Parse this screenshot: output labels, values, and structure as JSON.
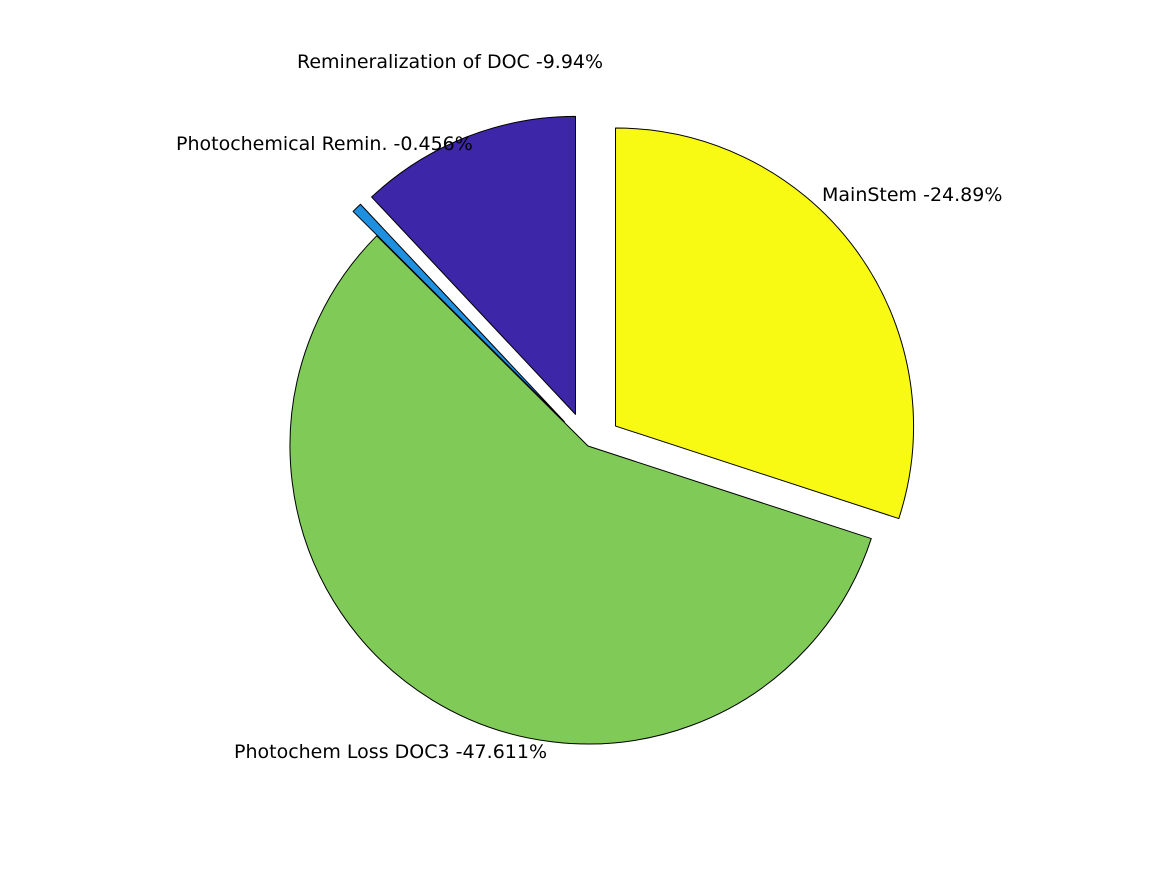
{
  "chart_data": {
    "type": "pie",
    "slices": [
      {
        "label": "MainStem -24.89%",
        "value": 24.89,
        "color": "#F9FA14",
        "exploded": true
      },
      {
        "label": "Photochem Loss DOC3 -47.611%",
        "value": 47.611,
        "color": "#80CB58",
        "exploded": false
      },
      {
        "label": "Photochemical Remin. -0.456%",
        "value": 0.456,
        "color": "#1F90E0",
        "exploded": true
      },
      {
        "label": "Remineralization of DOC -9.94%",
        "value": 9.94,
        "color": "#3E26A8",
        "exploded": true
      }
    ]
  }
}
